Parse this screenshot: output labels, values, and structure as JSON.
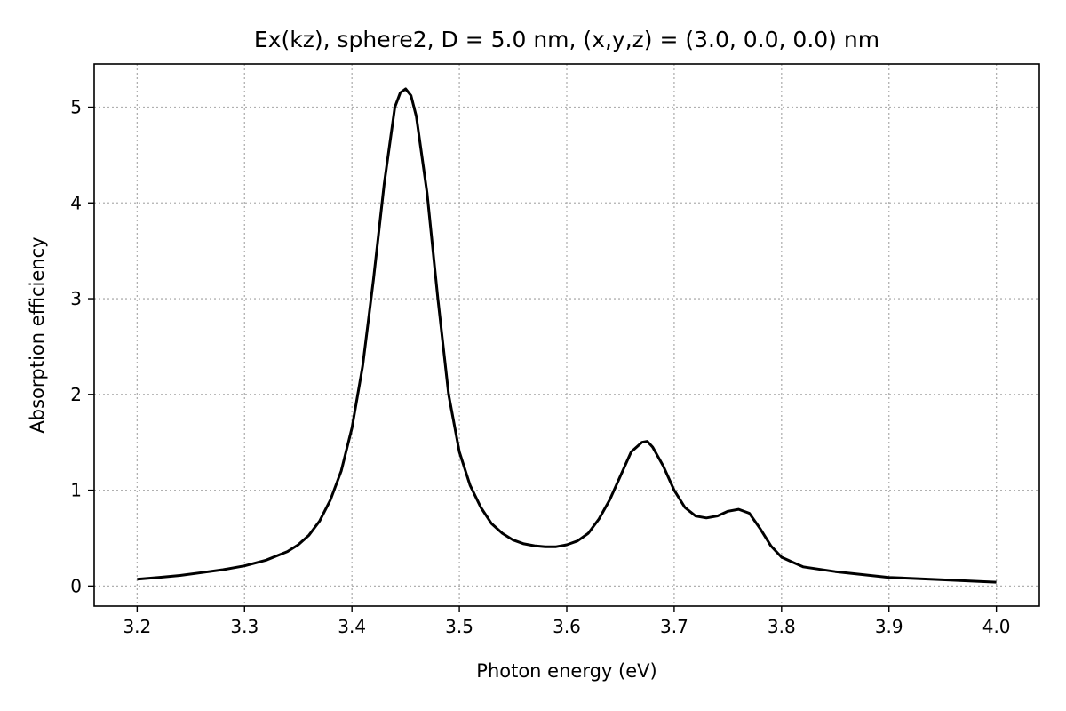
{
  "chart_data": {
    "type": "line",
    "title": "Ex(kz), sphere2, D = 5.0 nm, (x,y,z) = (3.0, 0.0, 0.0) nm",
    "xlabel": "Photon energy (eV)",
    "ylabel": "Absorption efficiency",
    "xlim": [
      3.16,
      4.04
    ],
    "ylim": [
      -0.21,
      5.45
    ],
    "xticks": [
      3.2,
      3.3,
      3.4,
      3.5,
      3.6,
      3.7,
      3.8,
      3.9,
      4.0
    ],
    "xtick_labels": [
      "3.2",
      "3.3",
      "3.4",
      "3.5",
      "3.6",
      "3.7",
      "3.8",
      "3.9",
      "4.0"
    ],
    "yticks": [
      0,
      1,
      2,
      3,
      4,
      5
    ],
    "ytick_labels": [
      "0",
      "1",
      "2",
      "3",
      "4",
      "5"
    ],
    "grid": true,
    "series": [
      {
        "color": "#000000",
        "x": [
          3.2,
          3.22,
          3.24,
          3.26,
          3.28,
          3.3,
          3.32,
          3.34,
          3.35,
          3.36,
          3.37,
          3.38,
          3.39,
          3.4,
          3.41,
          3.42,
          3.43,
          3.44,
          3.445,
          3.45,
          3.455,
          3.46,
          3.47,
          3.48,
          3.49,
          3.5,
          3.51,
          3.52,
          3.53,
          3.54,
          3.55,
          3.56,
          3.57,
          3.58,
          3.59,
          3.6,
          3.61,
          3.62,
          3.63,
          3.64,
          3.65,
          3.66,
          3.67,
          3.675,
          3.68,
          3.69,
          3.7,
          3.71,
          3.72,
          3.73,
          3.74,
          3.75,
          3.76,
          3.77,
          3.78,
          3.79,
          3.8,
          3.82,
          3.85,
          3.9,
          3.95,
          4.0
        ],
        "y": [
          0.07,
          0.09,
          0.11,
          0.14,
          0.17,
          0.21,
          0.27,
          0.36,
          0.43,
          0.53,
          0.68,
          0.9,
          1.2,
          1.65,
          2.3,
          3.2,
          4.2,
          5.0,
          5.15,
          5.19,
          5.12,
          4.9,
          4.1,
          3.0,
          2.0,
          1.4,
          1.05,
          0.82,
          0.65,
          0.55,
          0.48,
          0.44,
          0.42,
          0.41,
          0.41,
          0.43,
          0.47,
          0.55,
          0.7,
          0.9,
          1.15,
          1.4,
          1.5,
          1.51,
          1.45,
          1.25,
          1.0,
          0.82,
          0.73,
          0.71,
          0.73,
          0.78,
          0.8,
          0.76,
          0.6,
          0.42,
          0.3,
          0.2,
          0.15,
          0.09,
          0.065,
          0.04
        ]
      }
    ]
  }
}
